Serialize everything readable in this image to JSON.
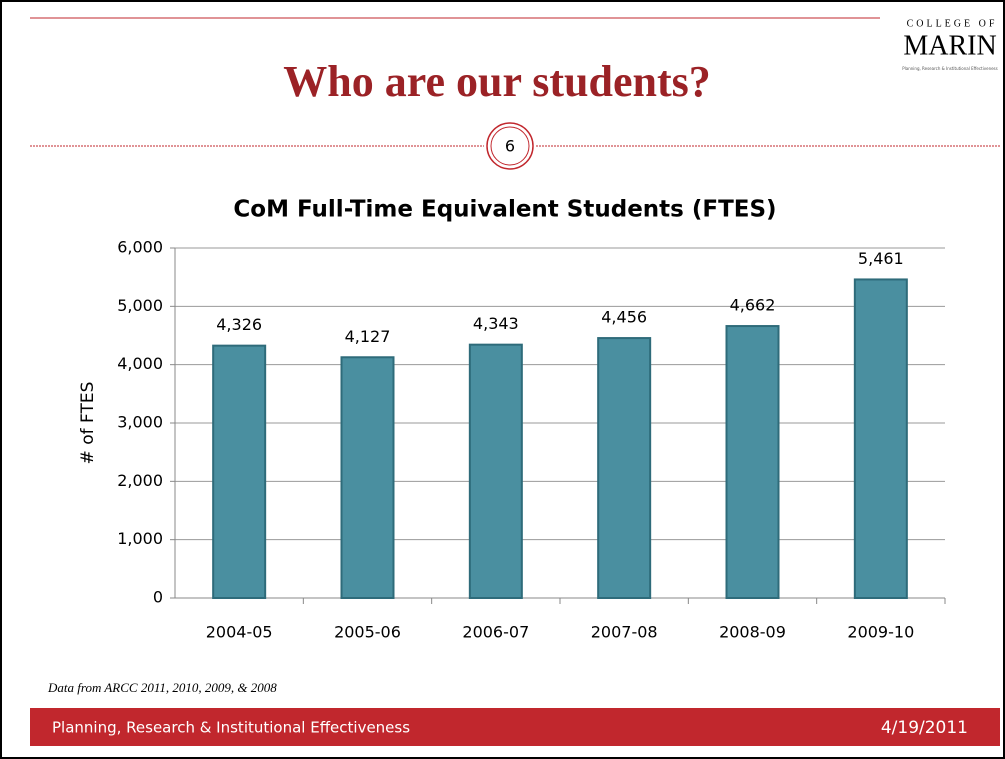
{
  "slide": {
    "title": "Who are our students?",
    "page_number": "6",
    "logo": {
      "line1": "COLLEGE OF",
      "line2": "MARIN",
      "line3": "Planning, Research & Institutional Effectiveness"
    },
    "note": "Data from ARCC 2011, 2010, 2009, & 2008",
    "footer": "Planning, Research & Institutional Effectiveness",
    "date": "4/19/2011"
  },
  "chart_data": {
    "type": "bar",
    "title": "CoM Full-Time Equivalent Students (FTES)",
    "ylabel": "# of FTES",
    "categories": [
      "2004-05",
      "2005-06",
      "2006-07",
      "2007-08",
      "2008-09",
      "2009-10"
    ],
    "values": [
      4326,
      4127,
      4343,
      4456,
      4662,
      5461
    ],
    "value_labels": [
      "4,326",
      "4,127",
      "4,343",
      "4,456",
      "4,662",
      "5,461"
    ],
    "color": "#4a8fa0",
    "ylim": [
      0,
      6000
    ],
    "yticks": [
      0,
      {
        "value": 1000,
        "label": "1,000"
      },
      {
        "value": 2000,
        "label": "2,000"
      },
      {
        "value": 3000,
        "label": "3,000"
      },
      {
        "value": 4000,
        "label": "4,000"
      },
      {
        "value": 5000,
        "label": "5,000"
      },
      {
        "value": 6000,
        "label": "6,000"
      }
    ],
    "grid": true
  }
}
